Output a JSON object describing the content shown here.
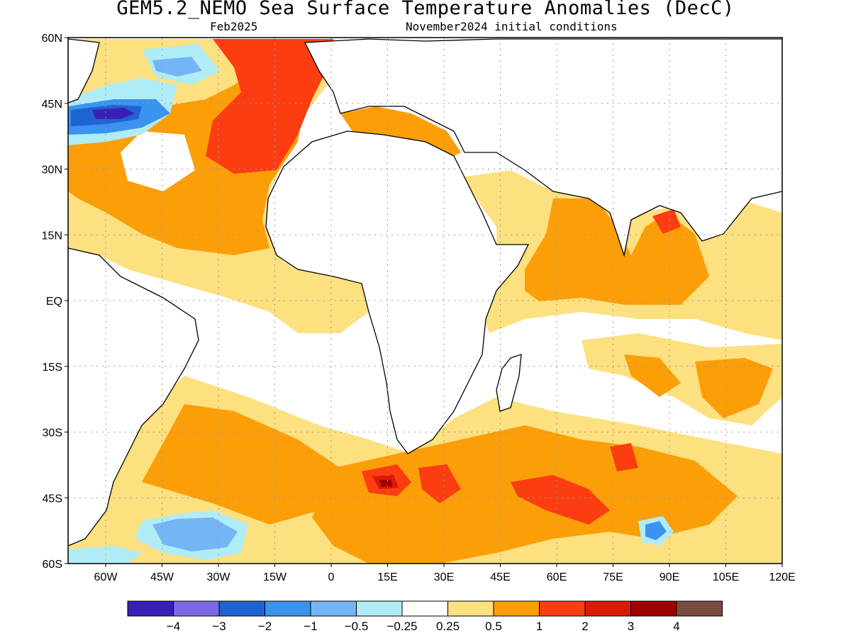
{
  "title": "GEM5.2_NEMO Sea Surface Temperature Anomalies (DecC)",
  "valid_month": "Feb2025",
  "init_conditions": "November2024 initial conditions",
  "map": {
    "lon_range": [
      -70,
      120
    ],
    "lat_range": [
      -60,
      60
    ],
    "lon_ticks": [
      "60W",
      "45W",
      "30W",
      "15W",
      "0",
      "15E",
      "30E",
      "45E",
      "60E",
      "75E",
      "90E",
      "105E",
      "120E"
    ],
    "lat_ticks": [
      "60N",
      "45N",
      "30N",
      "15N",
      "EQ",
      "15S",
      "30S",
      "45S",
      "60S"
    ],
    "grid": "dotted"
  },
  "colorbar": {
    "colors": [
      "#3a1fb5",
      "#7b6ae8",
      "#1f63d0",
      "#3a93ee",
      "#73b5f5",
      "#b0ecf6",
      "#ffffff",
      "#fde07f",
      "#fb9e08",
      "#fb3d11",
      "#dc1a06",
      "#a00000",
      "#7a4b3c"
    ],
    "labels": [
      "−4",
      "−3",
      "−2",
      "−1",
      "−0.5",
      "−0.25",
      "0.25",
      "0.5",
      "1",
      "2",
      "3",
      "4"
    ]
  },
  "chart_data": {
    "type": "heatmap",
    "title": "GEM5.2_NEMO Sea Surface Temperature Anomalies (DecC)",
    "x_range": [
      -70,
      120
    ],
    "y_range": [
      -60,
      60
    ],
    "levels": [
      -4,
      -3,
      -2,
      -1,
      -0.5,
      -0.25,
      0.25,
      0.5,
      1,
      2,
      3,
      4
    ],
    "regions": [
      {
        "level": 0.25,
        "lon": -50,
        "lat": 30
      },
      {
        "level": 1,
        "lon": -30,
        "lat": 20
      },
      {
        "level": 2,
        "lon": -15,
        "lat": 40
      },
      {
        "level": -1,
        "lon": -40,
        "lat": 50
      },
      {
        "level": -3,
        "lon": -60,
        "lat": 43
      },
      {
        "level": -0.5,
        "lon": -45,
        "lat": 55
      },
      {
        "level": 0.5,
        "lon": -20,
        "lat": 0
      },
      {
        "level": 2,
        "lon": 20,
        "lat": 36
      },
      {
        "level": 1,
        "lon": 70,
        "lat": 12
      },
      {
        "level": 2,
        "lon": 90,
        "lat": 17
      },
      {
        "level": 1,
        "lon": 100,
        "lat": -20
      },
      {
        "level": 1,
        "lon": 30,
        "lat": -42
      },
      {
        "level": 2,
        "lon": 55,
        "lat": -45
      },
      {
        "level": 3,
        "lon": 15,
        "lat": -42
      },
      {
        "level": -1,
        "lon": -35,
        "lat": -52
      },
      {
        "level": -1.5,
        "lon": 90,
        "lat": -52
      },
      {
        "level": 0.5,
        "lon": -40,
        "lat": -38
      }
    ]
  }
}
